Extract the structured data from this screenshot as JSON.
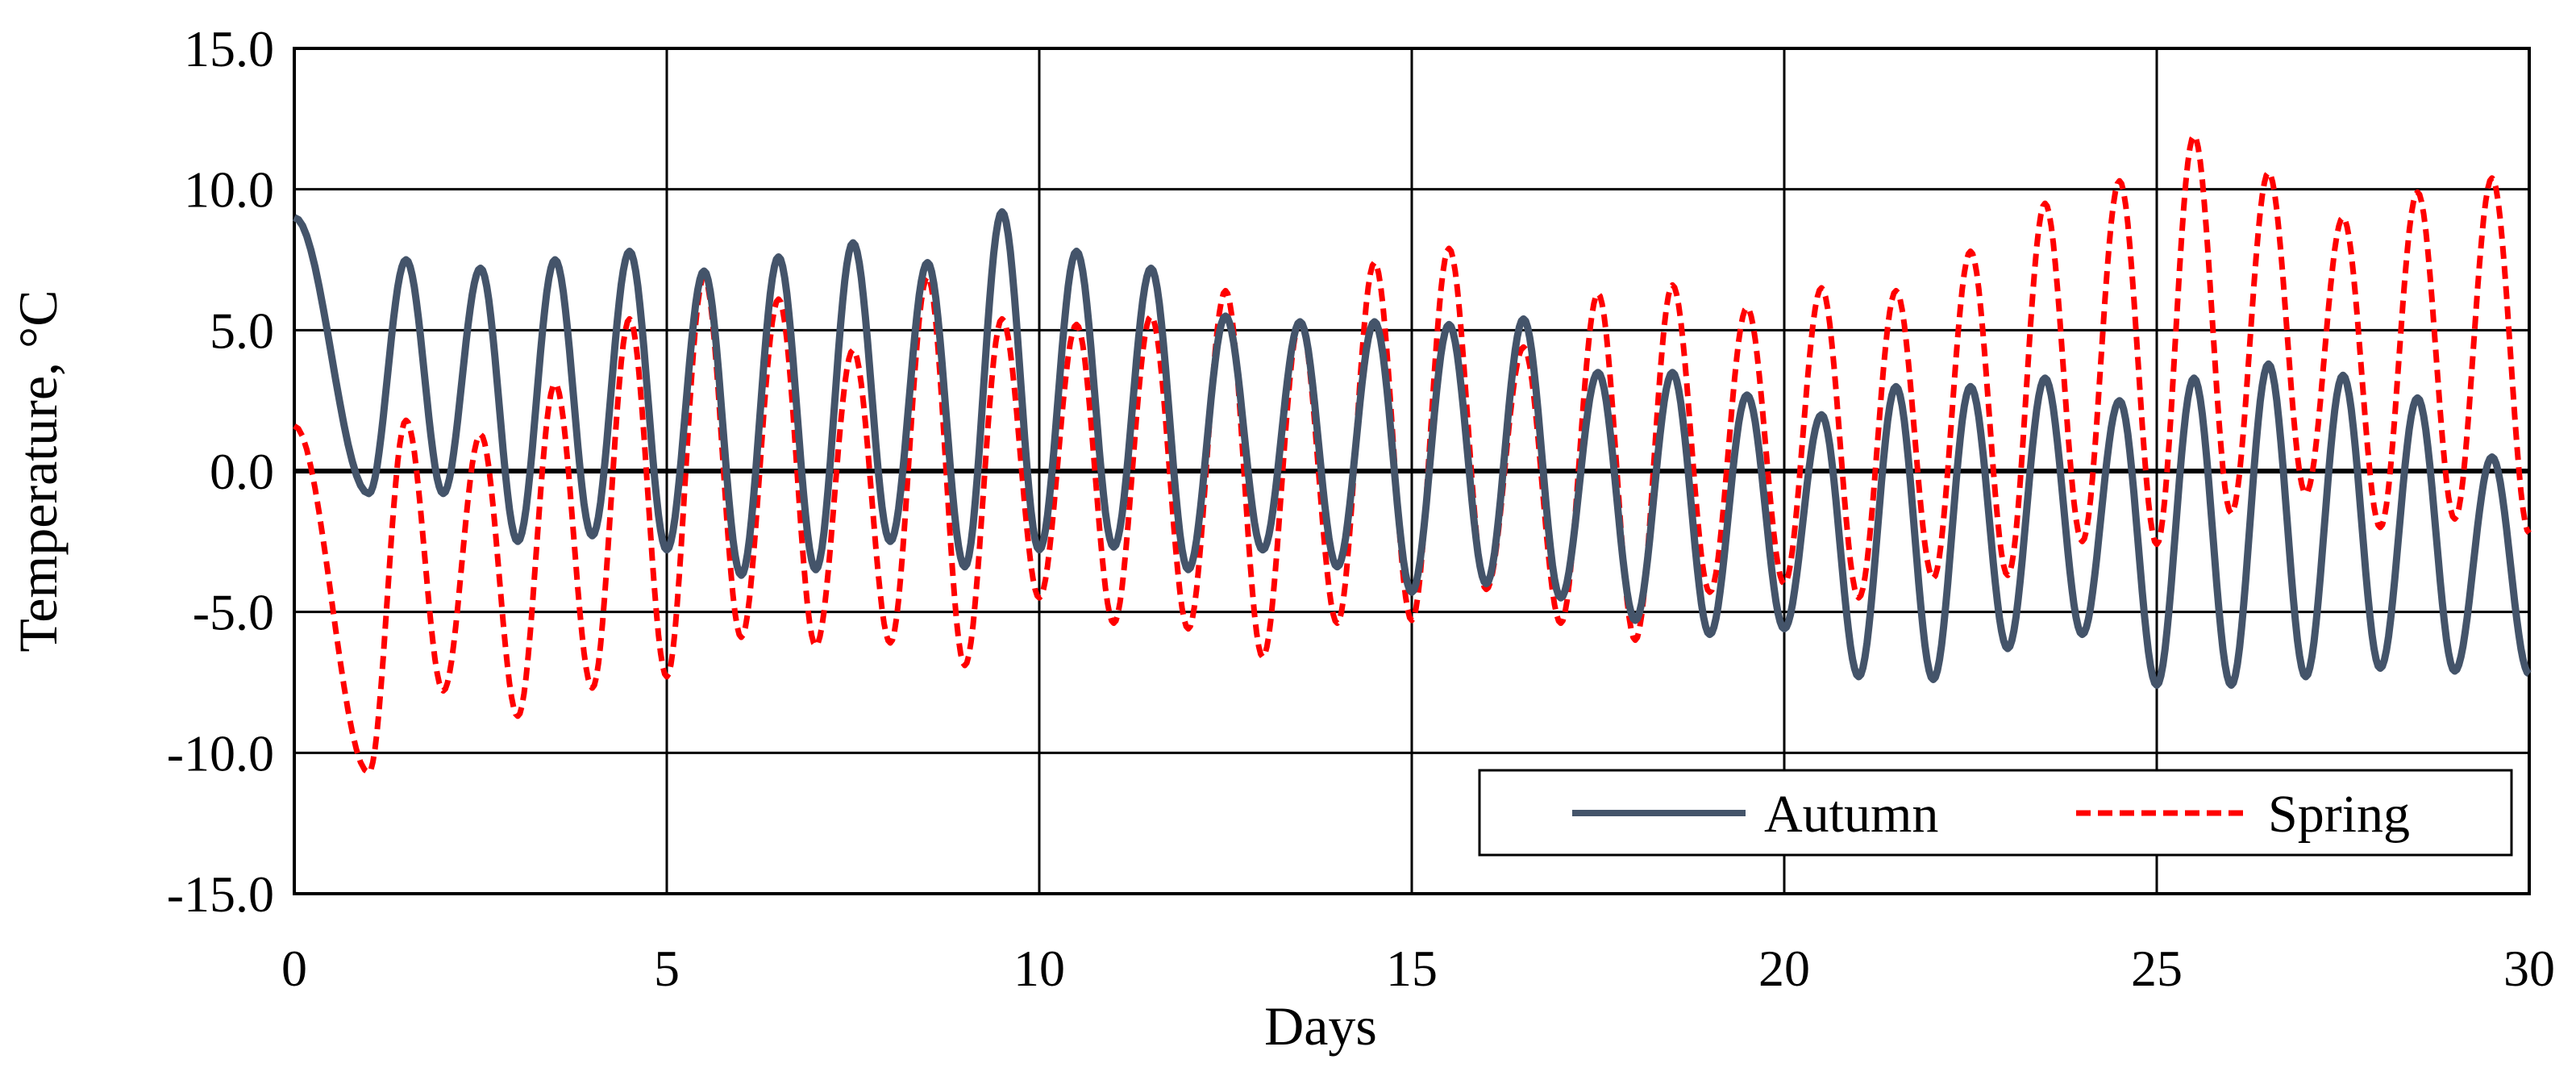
{
  "chart_data": {
    "type": "line",
    "title": "",
    "xlabel": "Days",
    "ylabel": "Temperature, °C",
    "xlim": [
      0,
      30
    ],
    "ylim": [
      -15,
      15
    ],
    "xticks": [
      0,
      5,
      10,
      15,
      20,
      25,
      30
    ],
    "yticks": [
      -15,
      -10,
      -5,
      0,
      5,
      10,
      15
    ],
    "xtick_labels": [
      "0",
      "5",
      "10",
      "15",
      "20",
      "25",
      "30"
    ],
    "ytick_labels": [
      "-15.0",
      "-10.0",
      "-5.0",
      "0.0",
      "5.0",
      "10.0",
      "15.0"
    ],
    "grid": true,
    "legend_position": "bottom-right",
    "series": [
      {
        "name": "Autumn",
        "color": "#44546a",
        "style": "solid",
        "points": [
          [
            0,
            9.0
          ],
          [
            1,
            -0.8
          ],
          [
            1.5,
            7.5
          ],
          [
            2,
            -0.8
          ],
          [
            2.5,
            7.2
          ],
          [
            3,
            -2.5
          ],
          [
            3.5,
            7.5
          ],
          [
            4,
            -2.3
          ],
          [
            4.5,
            7.8
          ],
          [
            5,
            -2.8
          ],
          [
            5.5,
            7.1
          ],
          [
            6,
            -3.7
          ],
          [
            6.5,
            7.6
          ],
          [
            7,
            -3.5
          ],
          [
            7.5,
            8.1
          ],
          [
            8,
            -2.5
          ],
          [
            8.5,
            7.4
          ],
          [
            9,
            -3.4
          ],
          [
            9.5,
            9.2
          ],
          [
            10,
            -2.8
          ],
          [
            10.5,
            7.8
          ],
          [
            11,
            -2.7
          ],
          [
            11.5,
            7.2
          ],
          [
            12,
            -3.5
          ],
          [
            12.5,
            5.5
          ],
          [
            13,
            -2.8
          ],
          [
            13.5,
            5.3
          ],
          [
            14,
            -3.4
          ],
          [
            14.5,
            5.3
          ],
          [
            15,
            -4.3
          ],
          [
            15.5,
            5.2
          ],
          [
            16,
            -4.0
          ],
          [
            16.5,
            5.4
          ],
          [
            17,
            -4.5
          ],
          [
            17.5,
            3.5
          ],
          [
            18,
            -5.3
          ],
          [
            18.5,
            3.5
          ],
          [
            19,
            -5.8
          ],
          [
            19.5,
            2.7
          ],
          [
            20,
            -5.6
          ],
          [
            20.5,
            2.0
          ],
          [
            21,
            -7.3
          ],
          [
            21.5,
            3.0
          ],
          [
            22,
            -7.4
          ],
          [
            22.5,
            3.0
          ],
          [
            23,
            -6.3
          ],
          [
            23.5,
            3.3
          ],
          [
            24,
            -5.8
          ],
          [
            24.5,
            2.5
          ],
          [
            25,
            -7.6
          ],
          [
            25.5,
            3.3
          ],
          [
            26,
            -7.6
          ],
          [
            26.5,
            3.8
          ],
          [
            27,
            -7.3
          ],
          [
            27.5,
            3.4
          ],
          [
            28,
            -7.0
          ],
          [
            28.5,
            2.6
          ],
          [
            29,
            -7.1
          ],
          [
            29.5,
            0.5
          ],
          [
            30,
            -7.2
          ]
        ]
      },
      {
        "name": "Spring",
        "color": "#ff0000",
        "style": "dashed",
        "points": [
          [
            0,
            1.6
          ],
          [
            1,
            -10.7
          ],
          [
            1.5,
            1.8
          ],
          [
            2,
            -7.8
          ],
          [
            2.5,
            1.3
          ],
          [
            3,
            -8.7
          ],
          [
            3.5,
            3.1
          ],
          [
            4,
            -7.7
          ],
          [
            4.5,
            5.4
          ],
          [
            5,
            -7.3
          ],
          [
            5.5,
            6.9
          ],
          [
            6,
            -5.9
          ],
          [
            6.5,
            6.1
          ],
          [
            7,
            -6.2
          ],
          [
            7.5,
            4.3
          ],
          [
            8,
            -6.1
          ],
          [
            8.5,
            6.9
          ],
          [
            9,
            -6.9
          ],
          [
            9.5,
            5.4
          ],
          [
            10,
            -4.5
          ],
          [
            10.5,
            5.2
          ],
          [
            11,
            -5.4
          ],
          [
            11.5,
            5.5
          ],
          [
            12,
            -5.6
          ],
          [
            12.5,
            6.4
          ],
          [
            13,
            -6.6
          ],
          [
            13.5,
            5.3
          ],
          [
            14,
            -5.4
          ],
          [
            14.5,
            7.4
          ],
          [
            15,
            -5.3
          ],
          [
            15.5,
            7.9
          ],
          [
            16,
            -4.2
          ],
          [
            16.5,
            4.4
          ],
          [
            17,
            -5.4
          ],
          [
            17.5,
            6.3
          ],
          [
            18,
            -6.0
          ],
          [
            18.5,
            6.6
          ],
          [
            19,
            -4.3
          ],
          [
            19.5,
            5.8
          ],
          [
            20,
            -4.0
          ],
          [
            20.5,
            6.5
          ],
          [
            21,
            -4.5
          ],
          [
            21.5,
            6.4
          ],
          [
            22,
            -3.8
          ],
          [
            22.5,
            7.8
          ],
          [
            23,
            -3.7
          ],
          [
            23.5,
            9.5
          ],
          [
            24,
            -2.5
          ],
          [
            24.5,
            10.3
          ],
          [
            25,
            -2.6
          ],
          [
            25.5,
            11.9
          ],
          [
            26,
            -1.5
          ],
          [
            26.5,
            10.6
          ],
          [
            27,
            -0.8
          ],
          [
            27.5,
            9.0
          ],
          [
            28,
            -2.0
          ],
          [
            28.5,
            9.9
          ],
          [
            29,
            -1.7
          ],
          [
            29.5,
            10.4
          ],
          [
            30,
            -2.2
          ]
        ]
      }
    ]
  }
}
